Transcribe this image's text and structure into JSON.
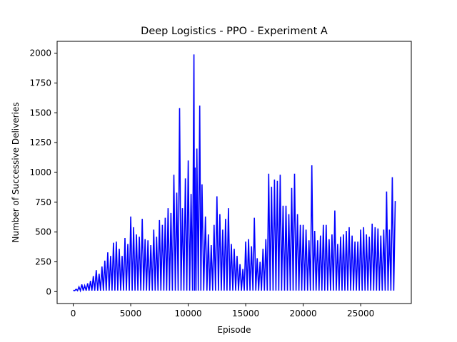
{
  "chart_data": {
    "type": "line",
    "title": "Deep Logistics - PPO - Experiment A",
    "xlabel": "Episode",
    "ylabel": "Number of Successive Deliveries",
    "xlim": [
      -1400,
      29400
    ],
    "ylim": [
      -100,
      2100
    ],
    "xticks": [
      0,
      5000,
      10000,
      15000,
      20000,
      25000
    ],
    "yticks": [
      0,
      250,
      500,
      750,
      1000,
      1250,
      1500,
      1750,
      2000
    ],
    "grid": false,
    "series": [
      {
        "color": "#0000ff",
        "x": [
          0,
          250,
          500,
          750,
          1000,
          1250,
          1500,
          1750,
          2000,
          2250,
          2500,
          2750,
          3000,
          3250,
          3500,
          3750,
          4000,
          4250,
          4500,
          4750,
          5000,
          5250,
          5500,
          5750,
          6000,
          6250,
          6500,
          6750,
          7000,
          7250,
          7500,
          7750,
          8000,
          8250,
          8500,
          8750,
          9000,
          9250,
          9500,
          9750,
          10000,
          10250,
          10500,
          10600,
          10750,
          11000,
          11200,
          11500,
          11750,
          12000,
          12250,
          12500,
          12750,
          13000,
          13250,
          13500,
          13750,
          14000,
          14250,
          14500,
          14750,
          15000,
          15250,
          15500,
          15750,
          16000,
          16250,
          16500,
          16750,
          17000,
          17250,
          17500,
          17750,
          18000,
          18250,
          18500,
          18750,
          19000,
          19250,
          19500,
          19750,
          20000,
          20250,
          20500,
          20750,
          21000,
          21250,
          21500,
          21750,
          22000,
          22250,
          22500,
          22750,
          23000,
          23250,
          23500,
          23750,
          24000,
          24250,
          24500,
          24750,
          25000,
          25250,
          25500,
          25750,
          26000,
          26250,
          26500,
          26750,
          27000,
          27250,
          27500,
          27750,
          28000
        ],
        "values": [
          10,
          20,
          40,
          60,
          50,
          70,
          90,
          130,
          180,
          150,
          210,
          260,
          330,
          300,
          410,
          420,
          360,
          300,
          450,
          400,
          630,
          540,
          480,
          460,
          610,
          440,
          430,
          390,
          520,
          460,
          600,
          560,
          620,
          700,
          660,
          980,
          830,
          1540,
          700,
          950,
          1100,
          820,
          1990,
          1040,
          1200,
          1560,
          900,
          630,
          480,
          390,
          560,
          800,
          650,
          520,
          610,
          700,
          400,
          360,
          300,
          230,
          190,
          420,
          440,
          380,
          620,
          280,
          250,
          360,
          440,
          990,
          880,
          940,
          930,
          980,
          720,
          720,
          650,
          870,
          990,
          650,
          560,
          560,
          520,
          430,
          1060,
          510,
          430,
          470,
          560,
          560,
          440,
          480,
          680,
          400,
          460,
          480,
          510,
          540,
          470,
          420,
          420,
          520,
          540,
          480,
          460,
          570,
          540,
          530,
          470,
          520,
          840,
          520,
          960,
          760
        ]
      }
    ]
  }
}
